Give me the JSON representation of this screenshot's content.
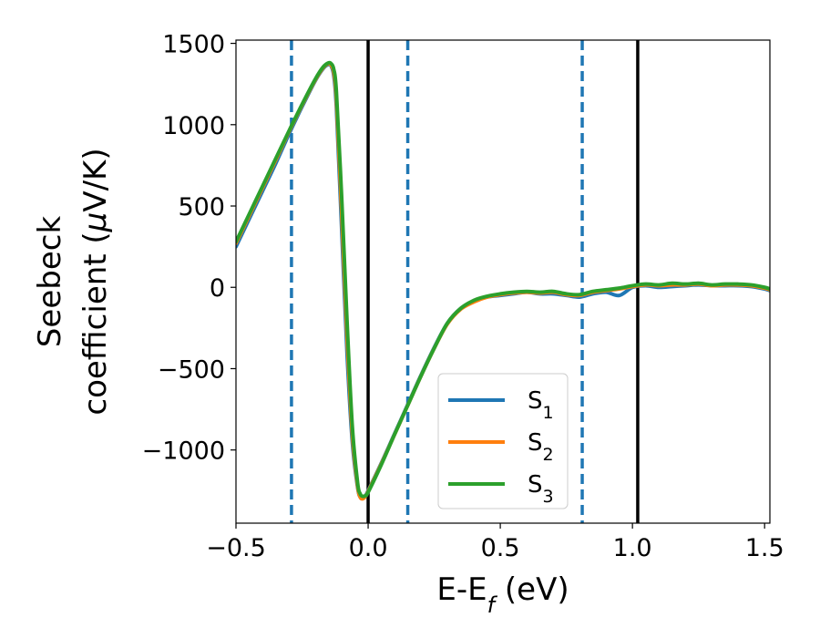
{
  "chart_data": {
    "type": "line",
    "xlabel": "E-E",
    "xlabel_sub": "f",
    "xlabel_unit": " (eV)",
    "ylabel_line1": "Seebeck",
    "ylabel_line2": "coefficient  (",
    "ylabel_mu": "μ",
    "ylabel_unit": "V/K)",
    "xlim": [
      -0.5,
      1.52
    ],
    "ylim": [
      -1450,
      1520
    ],
    "xticks": [
      -0.5,
      0.0,
      0.5,
      1.0,
      1.5
    ],
    "xtick_labels": [
      "−0.5",
      "0.0",
      "0.5",
      "1.0",
      "1.5"
    ],
    "yticks": [
      -1000,
      -500,
      0,
      500,
      1000,
      1500
    ],
    "ytick_labels": [
      "−1000",
      "−500",
      "0",
      "500",
      "1000",
      "1500"
    ],
    "grid": false,
    "legend_position": "lower-center-right",
    "vertical_lines_solid": [
      0.0,
      1.02
    ],
    "vertical_lines_dashed": [
      -0.29,
      0.15,
      0.81
    ],
    "vline_solid_color": "#000000",
    "vline_dashed_color": "#1f77b4",
    "series": [
      {
        "name": "S",
        "sub": "1",
        "color": "#1f77b4",
        "x": [
          -0.5,
          -0.45,
          -0.4,
          -0.35,
          -0.3,
          -0.25,
          -0.2,
          -0.17,
          -0.15,
          -0.14,
          -0.13,
          -0.12,
          -0.1,
          -0.08,
          -0.06,
          -0.04,
          -0.03,
          -0.02,
          -0.01,
          0.0,
          0.05,
          0.1,
          0.15,
          0.2,
          0.25,
          0.3,
          0.35,
          0.4,
          0.45,
          0.5,
          0.55,
          0.6,
          0.65,
          0.7,
          0.75,
          0.8,
          0.85,
          0.9,
          0.95,
          1.0,
          1.05,
          1.1,
          1.15,
          1.2,
          1.25,
          1.3,
          1.35,
          1.4,
          1.45,
          1.5,
          1.52
        ],
        "y": [
          250,
          420,
          590,
          760,
          940,
          1110,
          1270,
          1345,
          1370,
          1360,
          1300,
          1100,
          350,
          -400,
          -950,
          -1230,
          -1290,
          -1295,
          -1280,
          -1250,
          -1080,
          -900,
          -720,
          -540,
          -370,
          -220,
          -130,
          -85,
          -60,
          -50,
          -40,
          -30,
          -40,
          -40,
          -50,
          -60,
          -40,
          -30,
          -50,
          0,
          10,
          0,
          5,
          10,
          15,
          10,
          10,
          10,
          5,
          -10,
          -20
        ]
      },
      {
        "name": "S",
        "sub": "2",
        "color": "#ff7f0e",
        "x": [
          -0.5,
          -0.45,
          -0.4,
          -0.35,
          -0.3,
          -0.25,
          -0.2,
          -0.17,
          -0.15,
          -0.14,
          -0.13,
          -0.12,
          -0.1,
          -0.08,
          -0.06,
          -0.04,
          -0.03,
          -0.02,
          -0.01,
          0.0,
          0.05,
          0.1,
          0.15,
          0.2,
          0.25,
          0.3,
          0.35,
          0.4,
          0.45,
          0.5,
          0.55,
          0.6,
          0.65,
          0.7,
          0.75,
          0.8,
          0.85,
          0.9,
          0.95,
          1.0,
          1.05,
          1.1,
          1.15,
          1.2,
          1.25,
          1.3,
          1.35,
          1.4,
          1.45,
          1.5,
          1.52
        ],
        "y": [
          270,
          440,
          610,
          780,
          955,
          1120,
          1275,
          1350,
          1375,
          1365,
          1320,
          1150,
          450,
          -300,
          -900,
          -1220,
          -1290,
          -1300,
          -1285,
          -1255,
          -1085,
          -905,
          -725,
          -545,
          -375,
          -225,
          -135,
          -90,
          -60,
          -45,
          -35,
          -30,
          -35,
          -30,
          -45,
          -50,
          -30,
          -20,
          -10,
          5,
          15,
          10,
          15,
          15,
          20,
          10,
          15,
          15,
          10,
          -5,
          -15
        ]
      },
      {
        "name": "S",
        "sub": "3",
        "color": "#2ca02c",
        "x": [
          -0.5,
          -0.45,
          -0.4,
          -0.35,
          -0.3,
          -0.25,
          -0.2,
          -0.17,
          -0.15,
          -0.14,
          -0.13,
          -0.12,
          -0.1,
          -0.08,
          -0.06,
          -0.04,
          -0.03,
          -0.02,
          -0.01,
          0.0,
          0.05,
          0.1,
          0.15,
          0.2,
          0.25,
          0.3,
          0.35,
          0.4,
          0.45,
          0.5,
          0.55,
          0.6,
          0.65,
          0.7,
          0.75,
          0.8,
          0.85,
          0.9,
          0.95,
          1.0,
          1.05,
          1.1,
          1.15,
          1.2,
          1.25,
          1.3,
          1.35,
          1.4,
          1.45,
          1.5,
          1.52
        ],
        "y": [
          280,
          450,
          620,
          790,
          960,
          1125,
          1280,
          1355,
          1380,
          1375,
          1340,
          1200,
          550,
          -200,
          -850,
          -1200,
          -1270,
          -1285,
          -1280,
          -1260,
          -1090,
          -905,
          -725,
          -545,
          -375,
          -220,
          -130,
          -80,
          -55,
          -40,
          -30,
          -25,
          -30,
          -25,
          -40,
          -45,
          -25,
          -15,
          -5,
          10,
          20,
          15,
          25,
          20,
          25,
          15,
          20,
          20,
          15,
          0,
          -10
        ]
      }
    ]
  }
}
